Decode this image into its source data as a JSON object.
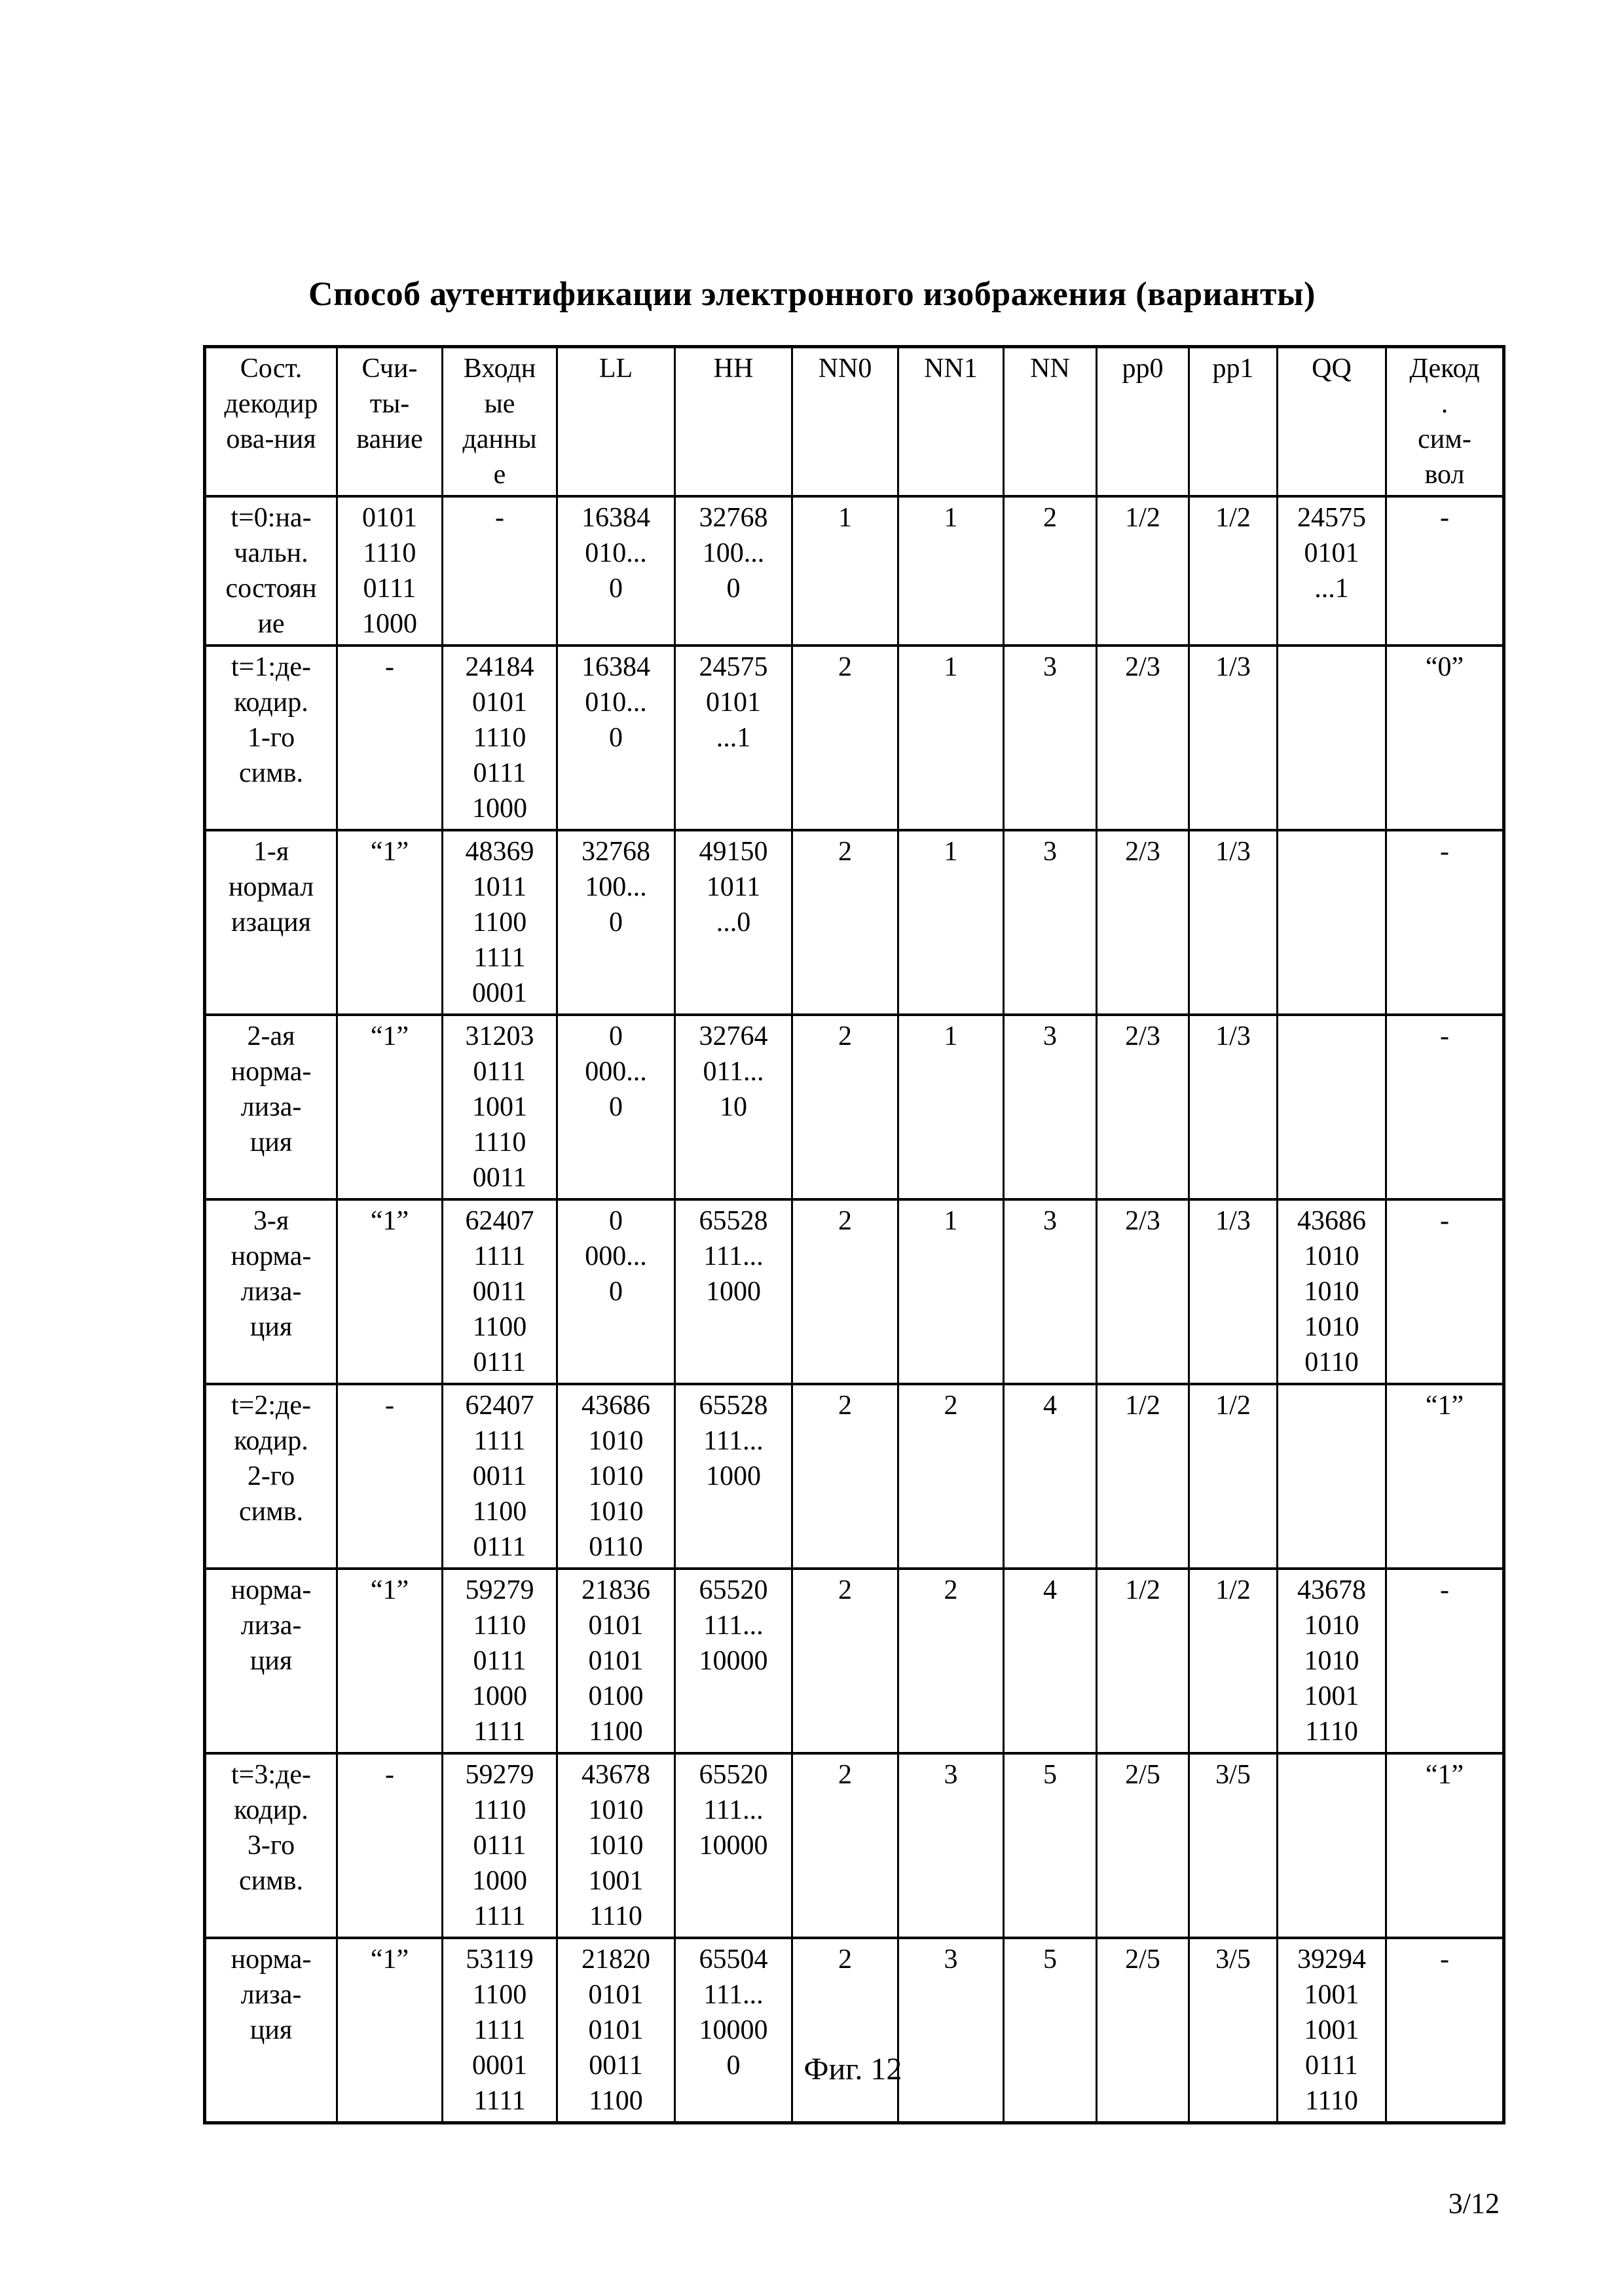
{
  "page": {
    "title": "Способ аутентификации электронного изображения (варианты)",
    "caption": "Фиг. 12",
    "page_number": "3/12"
  },
  "table": {
    "headers": [
      "Сост.\nдекодир\nова-ния",
      "Счи-\nты-\nвание",
      "Входн\nые\nданны\nе",
      "LL",
      "HH",
      "NN0",
      "NN1",
      "NN",
      "pp0",
      "pp1",
      "QQ",
      "Декод\n.\nсим-\nвол"
    ],
    "rows": [
      [
        "t=0:на-\nчальн.\nсостоян\nие",
        "0101\n1110\n0111\n1000",
        "-",
        "16384\n010...\n0",
        "32768\n100...\n0",
        "1",
        "1",
        "2",
        "1/2",
        "1/2",
        "24575\n0101\n...1",
        "-"
      ],
      [
        "t=1:де-\nкодир.\n1-го\nсимв.",
        "-",
        "24184\n0101\n1110\n0111\n1000",
        "16384\n010...\n0",
        "24575\n0101\n...1",
        "2",
        "1",
        "3",
        "2/3",
        "1/3",
        "",
        "“0”"
      ],
      [
        "1-я\nнормал\nизация",
        "“1”",
        "48369\n1011\n1100\n1111\n0001",
        "32768\n100...\n0",
        "49150\n1011\n...0",
        "2",
        "1",
        "3",
        "2/3",
        "1/3",
        "",
        "-"
      ],
      [
        "2-ая\nнорма-\nлиза-\nция",
        "“1”",
        "31203\n0111\n1001\n1110\n0011",
        "0\n000...\n0",
        "32764\n011...\n10",
        "2",
        "1",
        "3",
        "2/3",
        "1/3",
        "",
        "-"
      ],
      [
        "3-я\nнорма-\nлиза-\nция",
        "“1”",
        "62407\n1111\n0011\n1100\n0111",
        "0\n000...\n0",
        "65528\n111...\n1000",
        "2",
        "1",
        "3",
        "2/3",
        "1/3",
        "43686\n1010\n1010\n1010\n0110",
        "-"
      ],
      [
        "t=2:де-\nкодир.\n2-го\nсимв.",
        "-",
        "62407\n1111\n0011\n1100\n0111",
        "43686\n1010\n1010\n1010\n0110",
        "65528\n111...\n1000",
        "2",
        "2",
        "4",
        "1/2",
        "1/2",
        "",
        "“1”"
      ],
      [
        "норма-\nлиза-\nция",
        "“1”",
        "59279\n1110\n0111\n1000\n1111",
        "21836\n0101\n0101\n0100\n1100",
        "65520\n111...\n10000",
        "2",
        "2",
        "4",
        "1/2",
        "1/2",
        "43678\n1010\n1010\n1001\n1110",
        "-"
      ],
      [
        "t=3:де-\nкодир.\n3-го\nсимв.",
        "-",
        "59279\n1110\n0111\n1000\n1111",
        "43678\n1010\n1010\n1001\n1110",
        "65520\n111...\n10000",
        "2",
        "3",
        "5",
        "2/5",
        "3/5",
        "",
        "“1”"
      ],
      [
        "норма-\nлиза-\nция",
        "“1”",
        "53119\n1100\n1111\n0001\n1111",
        "21820\n0101\n0101\n0011\n1100",
        "65504\n111...\n10000\n0",
        "2",
        "3",
        "5",
        "2/5",
        "3/5",
        "39294\n1001\n1001\n0111\n1110",
        "-"
      ]
    ]
  }
}
